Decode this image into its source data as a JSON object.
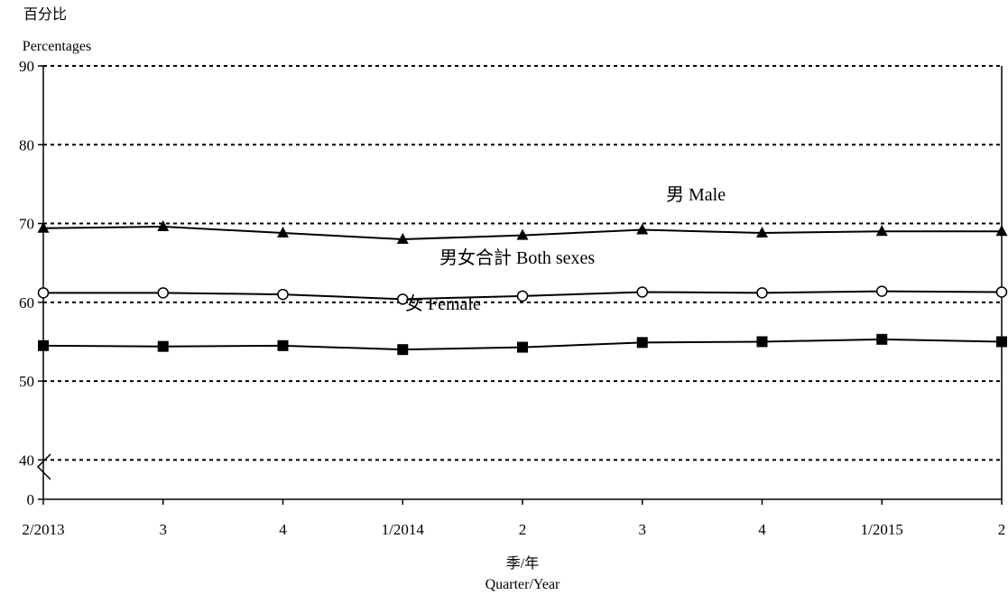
{
  "chart_data": {
    "type": "line",
    "ylabel_zh": "百分比",
    "ylabel_en": "Percentages",
    "xlabel_zh": "季/年",
    "xlabel_en": "Quarter/Year",
    "categories": [
      "2/2013",
      "3",
      "4",
      "1/2014",
      "2",
      "3",
      "4",
      "1/2015",
      "2"
    ],
    "y_ticks": [
      0,
      40,
      50,
      60,
      70,
      80,
      90
    ],
    "y_break": [
      0,
      35
    ],
    "ylim": [
      35,
      90
    ],
    "grid": "dotted horizontal at 40, 50, 60, 70, 80, 90",
    "series": [
      {
        "name": "男 Male",
        "marker": "triangle",
        "values": [
          69.4,
          69.6,
          68.8,
          68.0,
          68.5,
          69.2,
          68.8,
          69.0,
          69.0
        ]
      },
      {
        "name": "男女合計 Both sexes",
        "marker": "open-circle",
        "values": [
          61.2,
          61.2,
          61.0,
          60.4,
          60.8,
          61.3,
          61.2,
          61.4,
          61.3
        ]
      },
      {
        "name": "女 Female",
        "marker": "square",
        "values": [
          54.5,
          54.4,
          54.5,
          54.0,
          54.3,
          54.9,
          55.0,
          55.3,
          55.0
        ]
      }
    ]
  },
  "colors": {
    "line": "#000000",
    "background": "#ffffff"
  }
}
